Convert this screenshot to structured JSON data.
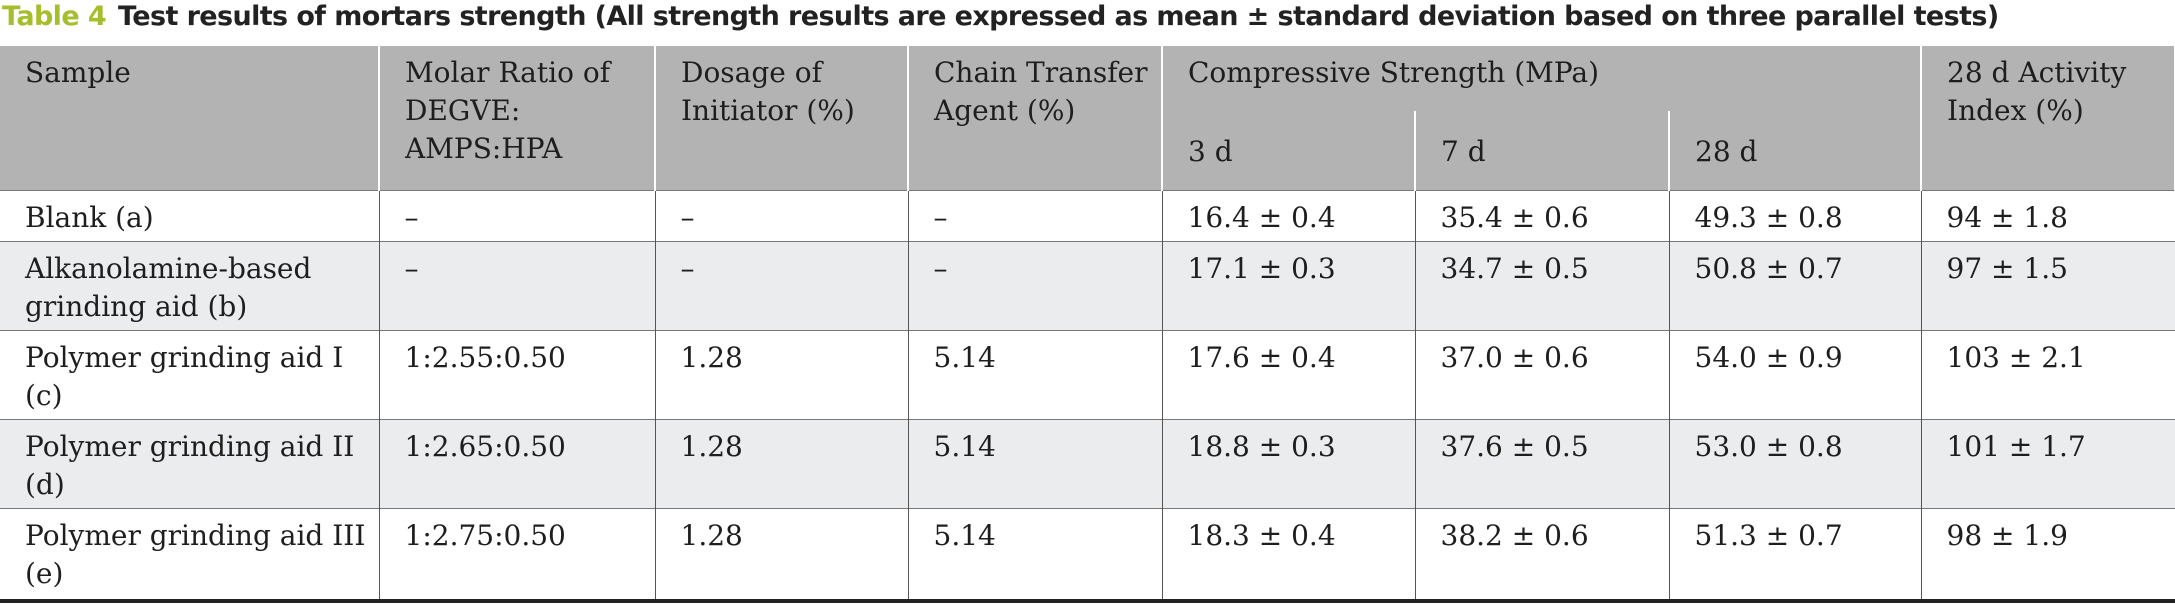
{
  "caption": {
    "label": "Table 4",
    "title": "Test results of mortars strength (All strength results are expressed as mean ± standard deviation based on three parallel tests)"
  },
  "table": {
    "header": {
      "sample": "Sample",
      "molar_ratio": "Molar Ratio of DEGVE: AMPS:HPA",
      "initiator": "Dosage of Initiator (%)",
      "chain_transfer": "Chain Transfer Agent (%)",
      "compressive": "Compressive Strength (MPa)",
      "sub": [
        "3 d",
        "7 d",
        "28 d"
      ],
      "activity": "28 d Activity Index (%)"
    },
    "rows": [
      [
        "Blank (a)",
        "–",
        "–",
        "–",
        "16.4 ± 0.4",
        "35.4 ± 0.6",
        "49.3 ± 0.8",
        "94 ± 1.8"
      ],
      [
        "Alkanolamine-based grinding aid (b)",
        "–",
        "–",
        "–",
        "17.1 ± 0.3",
        "34.7 ± 0.5",
        "50.8 ± 0.7",
        "97 ± 1.5"
      ],
      [
        "Polymer grinding aid I (c)",
        "1:2.55:0.50",
        "1.28",
        "5.14",
        "17.6 ± 0.4",
        "37.0 ± 0.6",
        "54.0 ± 0.9",
        "103 ± 2.1"
      ],
      [
        "Polymer grinding aid II (d)",
        "1:2.65:0.50",
        "1.28",
        "5.14",
        "18.8 ± 0.3",
        "37.6 ± 0.5",
        "53.0 ± 0.8",
        "101 ± 1.7"
      ],
      [
        "Polymer grinding aid III (e)",
        "1:2.75:0.50",
        "1.28",
        "5.14",
        "18.3 ± 0.4",
        "38.2 ± 0.6",
        "51.3 ± 0.7",
        "98 ± 1.9"
      ]
    ]
  }
}
